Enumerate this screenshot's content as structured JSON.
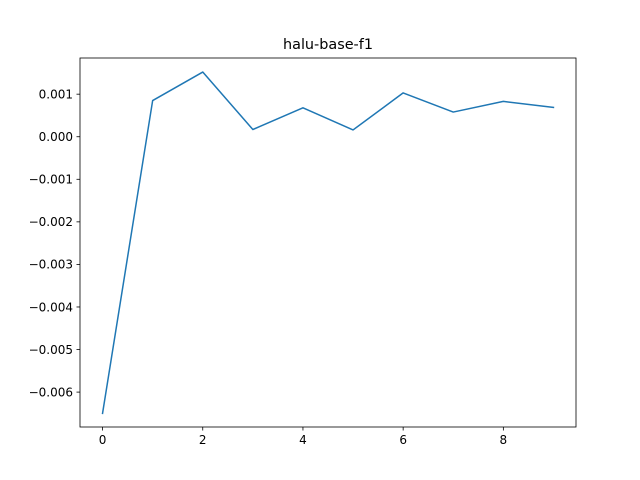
{
  "chart_data": {
    "type": "line",
    "title": "halu-base-f1",
    "xlabel": "",
    "ylabel": "",
    "xlim": [
      -0.45,
      9.45
    ],
    "ylim": [
      -0.00682,
      0.00185
    ],
    "x_ticks": [
      0,
      2,
      4,
      6,
      8
    ],
    "x_tick_labels": [
      "0",
      "2",
      "4",
      "6",
      "8"
    ],
    "y_ticks": [
      -0.006,
      -0.005,
      -0.004,
      -0.003,
      -0.002,
      -0.001,
      0.0,
      0.001
    ],
    "y_tick_labels": [
      "−0.006",
      "−0.005",
      "−0.004",
      "−0.003",
      "−0.002",
      "−0.001",
      "0.000",
      "0.001"
    ],
    "grid": false,
    "legend": "none",
    "series": [
      {
        "color": "#1f77b4",
        "x": [
          0,
          1,
          2,
          3,
          4,
          5,
          6,
          7,
          8,
          9
        ],
        "y": [
          -0.0065,
          0.00085,
          0.00152,
          0.00017,
          0.00068,
          0.00016,
          0.00103,
          0.00058,
          0.00083,
          0.00069
        ]
      }
    ]
  }
}
